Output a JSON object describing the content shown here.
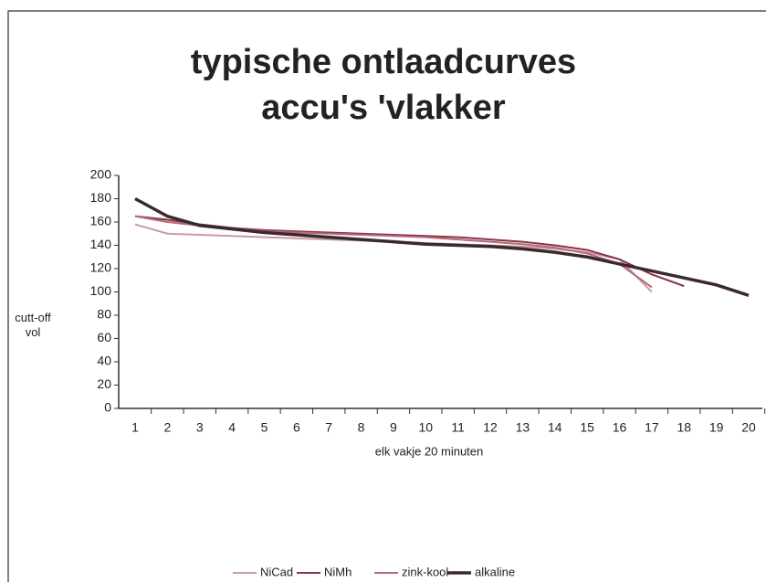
{
  "chart_data": {
    "type": "line",
    "title": "typische ontlaadcurves",
    "subtitle": "accu's 'vlakker",
    "ylabel": "cutt-off vol",
    "xlabel": "elk vakje 20 minuten",
    "categories": [
      "1",
      "2",
      "3",
      "4",
      "5",
      "6",
      "7",
      "8",
      "9",
      "10",
      "11",
      "12",
      "13",
      "14",
      "15",
      "16",
      "17",
      "18",
      "19",
      "20"
    ],
    "series": [
      {
        "name": "NiCad",
        "color": "#c99aa4",
        "values": [
          158,
          150,
          149,
          148,
          147,
          146,
          145,
          144,
          143,
          142,
          141,
          140,
          139,
          137,
          134,
          128,
          100,
          null,
          null,
          null
        ]
      },
      {
        "name": "NiMh",
        "color": "#8c3446",
        "values": [
          165,
          162,
          158,
          155,
          153,
          152,
          151,
          150,
          149,
          148,
          147,
          145,
          143,
          140,
          136,
          128,
          115,
          105,
          null,
          null
        ]
      },
      {
        "name": "zink-kool",
        "color": "#b46a78",
        "values": [
          165,
          160,
          157,
          155,
          152,
          151,
          150,
          149,
          148,
          147,
          145,
          143,
          141,
          138,
          133,
          124,
          104,
          null,
          null,
          null
        ]
      },
      {
        "name": "alkaline",
        "color": "#3a2a30",
        "values": [
          180,
          165,
          157,
          154,
          151,
          149,
          147,
          145,
          143,
          141,
          140,
          139,
          137,
          134,
          130,
          124,
          118,
          112,
          106,
          97
        ]
      }
    ],
    "ylim": [
      0,
      200
    ],
    "yticks": [
      0,
      20,
      40,
      60,
      80,
      100,
      120,
      140,
      160,
      180,
      200
    ],
    "grid": false
  }
}
